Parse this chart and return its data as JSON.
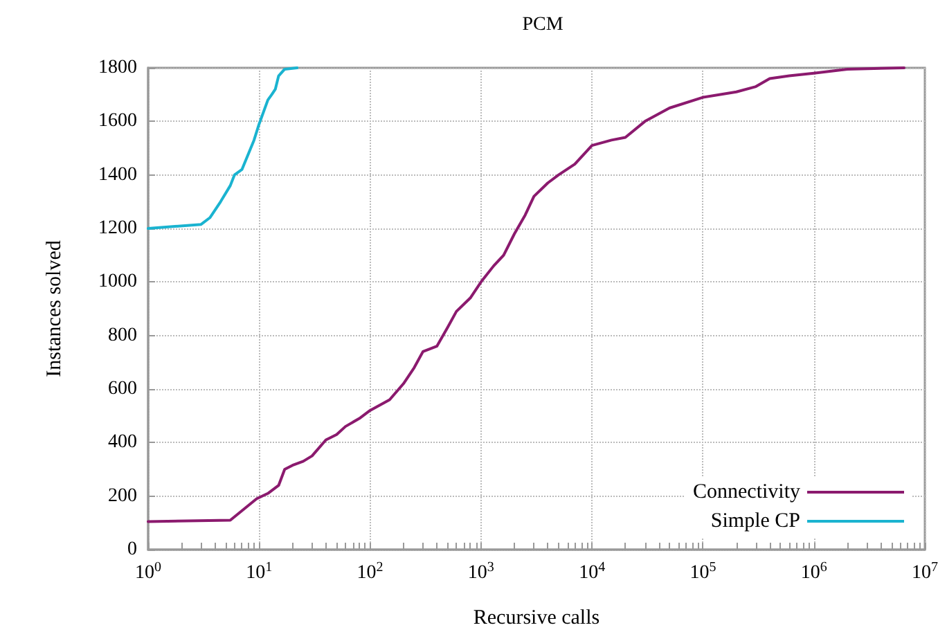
{
  "chart_data": {
    "type": "line",
    "title": "PCM",
    "xlabel": "Recursive calls",
    "ylabel": "Instances solved",
    "log": "x",
    "grid": true,
    "legend": "bottom right",
    "line_style": "solid",
    "marker": "none",
    "xlim": [
      1,
      10000000
    ],
    "xticks": [
      {
        "value": 1,
        "label": "10$^{0}$"
      },
      {
        "value": 10,
        "label": "10$^{1}$"
      },
      {
        "value": 100,
        "label": "10$^{2}$"
      },
      {
        "value": 1000,
        "label": "10$^{3}$"
      },
      {
        "value": 10000,
        "label": "10$^{4}$"
      },
      {
        "value": 100000,
        "label": "10$^{5}$"
      },
      {
        "value": 1000000,
        "label": "10$^{6}$"
      },
      {
        "value": 10000000,
        "label": "10$^{7}$"
      }
    ],
    "ylim": [
      0,
      1800
    ],
    "yticks": [
      0,
      200,
      400,
      600,
      800,
      1000,
      1200,
      1400,
      1600,
      1800
    ],
    "series": [
      {
        "name": "Connectivity",
        "color": "#8b1a6e",
        "x": [
          1,
          5.5,
          9.5,
          12,
          15,
          17,
          20,
          25,
          30,
          40,
          50,
          60,
          80,
          100,
          150,
          200,
          250,
          300,
          400,
          500,
          600,
          800,
          1000,
          1300,
          1600,
          2000,
          2500,
          3000,
          4000,
          5000,
          7000,
          10000,
          15000,
          20000,
          30000,
          50000,
          100000,
          200000,
          300000,
          400000,
          600000,
          1000000,
          2000000,
          6500000
        ],
        "values": [
          105,
          110,
          190,
          210,
          240,
          300,
          315,
          330,
          350,
          410,
          430,
          460,
          490,
          520,
          560,
          620,
          680,
          740,
          760,
          830,
          890,
          940,
          1000,
          1060,
          1100,
          1180,
          1250,
          1320,
          1370,
          1400,
          1440,
          1510,
          1530,
          1540,
          1600,
          1650,
          1690,
          1710,
          1730,
          1760,
          1770,
          1780,
          1795,
          1800
        ]
      },
      {
        "name": "Simple CP",
        "color": "#1ab3d0",
        "x": [
          1,
          3,
          3.6,
          4.5,
          5.5,
          6,
          7,
          9,
          10,
          12,
          13,
          14,
          15,
          17,
          22
        ],
        "values": [
          1200,
          1215,
          1240,
          1300,
          1360,
          1400,
          1420,
          1530,
          1590,
          1680,
          1700,
          1720,
          1770,
          1795,
          1800
        ]
      }
    ]
  }
}
